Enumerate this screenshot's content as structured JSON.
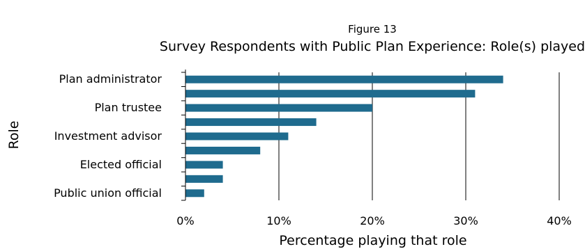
{
  "figure_label": "Figure 13",
  "chart_data": {
    "type": "bar",
    "orientation": "horizontal",
    "title": "Survey Respondents with Public Plan Experience:  Role(s) played",
    "xlabel": "Percentage playing that role",
    "ylabel": "Role",
    "categories": [
      "Plan administrator",
      "",
      "Plan trustee ",
      "",
      "Investment advisor",
      "",
      "Elected official",
      "",
      "Public union official"
    ],
    "values": [
      34,
      31,
      20,
      14,
      11,
      8,
      4,
      4,
      2
    ],
    "xlim": [
      0,
      40
    ],
    "x_ticks": [
      "0%",
      "10%",
      "20%",
      "30%",
      "40%"
    ],
    "bar_color": "#1f6b8e",
    "grid": "vertical",
    "legend": "none"
  }
}
